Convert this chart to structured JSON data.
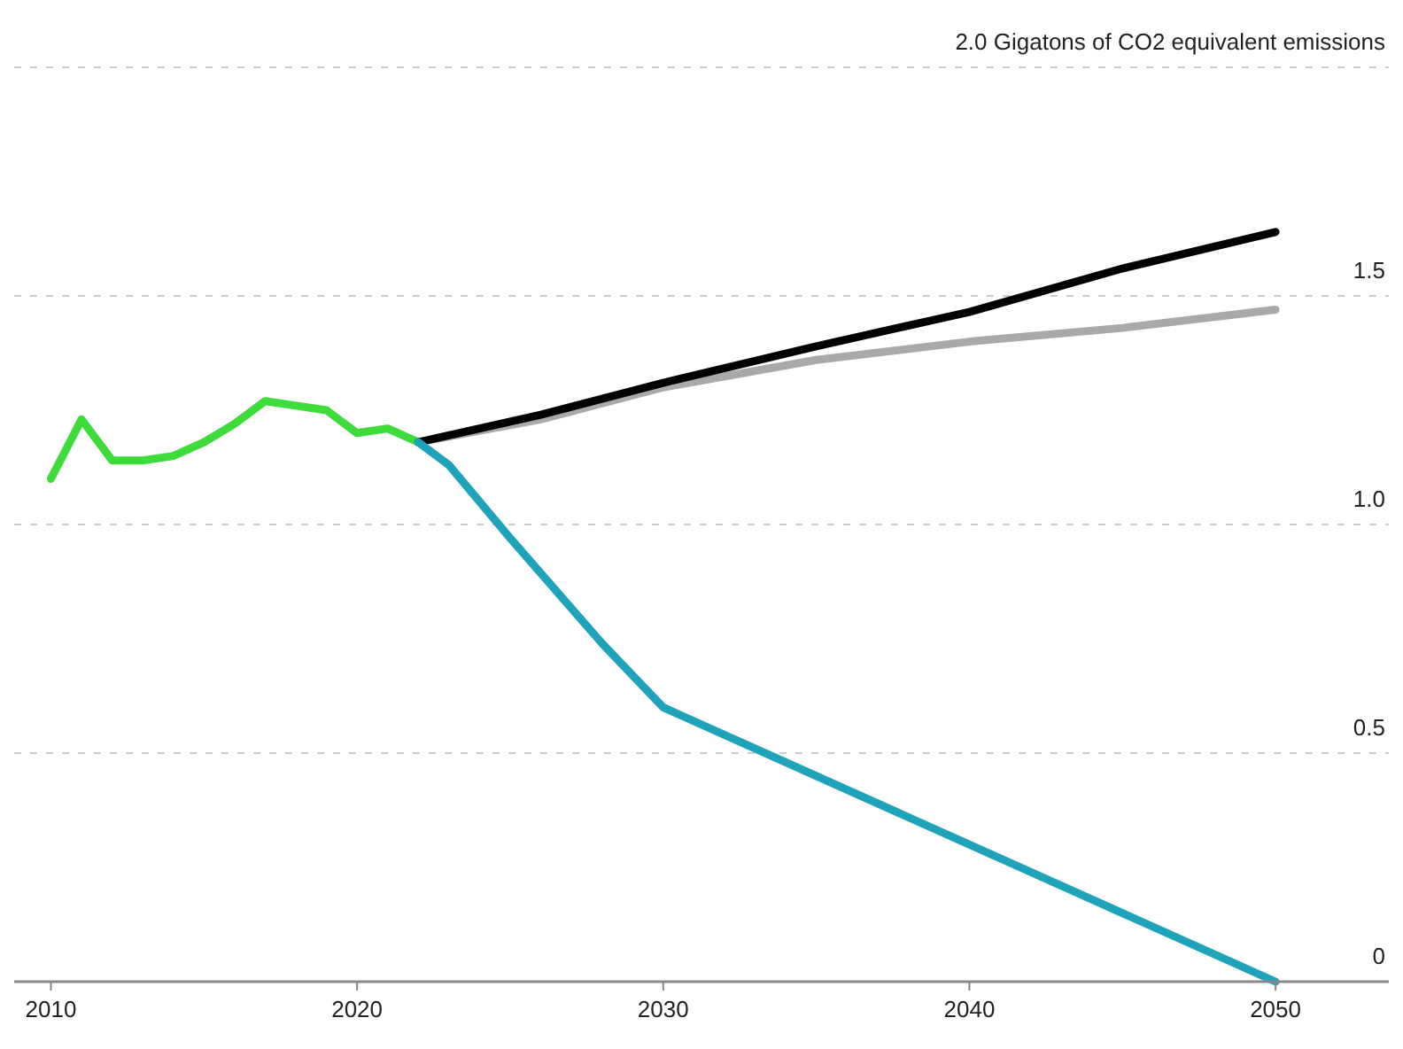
{
  "chart_data": {
    "type": "line",
    "xlim": [
      2008.8,
      2053.7
    ],
    "ylim": [
      0,
      2
    ],
    "xticks": [
      2010,
      2020,
      2030,
      2040,
      2050
    ],
    "yticks": [
      0,
      {
        "value": 0.5,
        "label": "0.5"
      },
      {
        "value": 1,
        "label": "1.0"
      },
      {
        "value": 1.5,
        "label": "1.5"
      },
      {
        "value": 2,
        "label": "2.0 Gigatons of CO2 equivalent emissions"
      }
    ],
    "grid": "y",
    "line_style": "solid",
    "marker": "none",
    "series": [
      {
        "color": "#3ddc3a",
        "x": [
          2010,
          2011,
          2012,
          2013,
          2014,
          2015,
          2016,
          2017,
          2018,
          2019,
          2020,
          2021,
          2022
        ],
        "values": [
          1.1,
          1.23,
          1.14,
          1.14,
          1.15,
          1.18,
          1.22,
          1.27,
          1.26,
          1.25,
          1.2,
          1.21,
          1.18
        ]
      },
      {
        "color": "#a9a9a9",
        "x": [
          2022,
          2026,
          2030,
          2035,
          2040,
          2045,
          2050
        ],
        "values": [
          1.18,
          1.23,
          1.3,
          1.36,
          1.4,
          1.43,
          1.47
        ]
      },
      {
        "color": "#000000",
        "x": [
          2022,
          2026,
          2030,
          2035,
          2040,
          2045,
          2050
        ],
        "values": [
          1.18,
          1.24,
          1.31,
          1.39,
          1.465,
          1.56,
          1.64
        ]
      },
      {
        "color": "#1fa3bb",
        "x": [
          2022,
          2023,
          2025,
          2028,
          2030,
          2050
        ],
        "values": [
          1.18,
          1.13,
          0.97,
          0.74,
          0.6,
          0
        ]
      }
    ]
  }
}
